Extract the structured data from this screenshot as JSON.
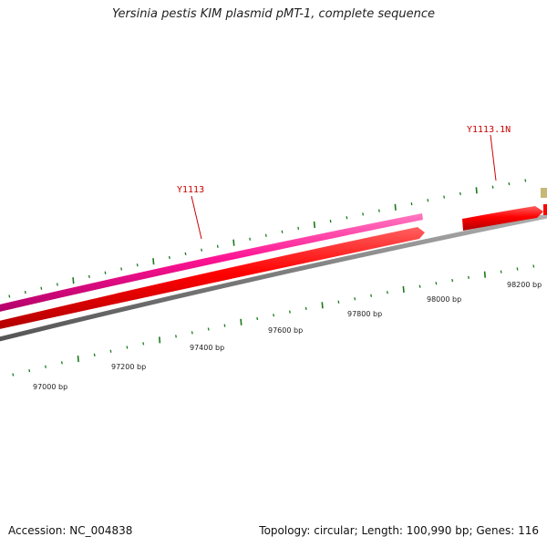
{
  "title": "Yersinia pestis KIM plasmid pMT-1, complete sequence",
  "footer": {
    "accession": "Accession: NC_004838",
    "summary": "Topology: circular; Length: 100,990 bp; Genes: 116"
  },
  "scale": {
    "labels": [
      "97000 bp",
      "97200 bp",
      "97400 bp",
      "97600 bp",
      "97800 bp",
      "98000 bp",
      "98200 bp"
    ]
  },
  "features": [
    {
      "name": "Y1113",
      "type": "CDS",
      "strand": "+",
      "color": "#ff0000",
      "label": "Y1113"
    },
    {
      "name": "Y1113-gene",
      "type": "gene",
      "strand": "+",
      "color": "#ff1493"
    },
    {
      "name": "Y1113.1N",
      "type": "CDS",
      "strand": "+",
      "color": "#ff0000",
      "label": "Y1113.1N"
    },
    {
      "name": "next-feature",
      "type": "misc",
      "strand": "+",
      "color": "#c8b878"
    }
  ],
  "colors": {
    "backbone": "#808080",
    "tick": "#1a7a1a",
    "gene": "#ff1493",
    "cds": "#ff0000",
    "label": "#cc0000"
  }
}
